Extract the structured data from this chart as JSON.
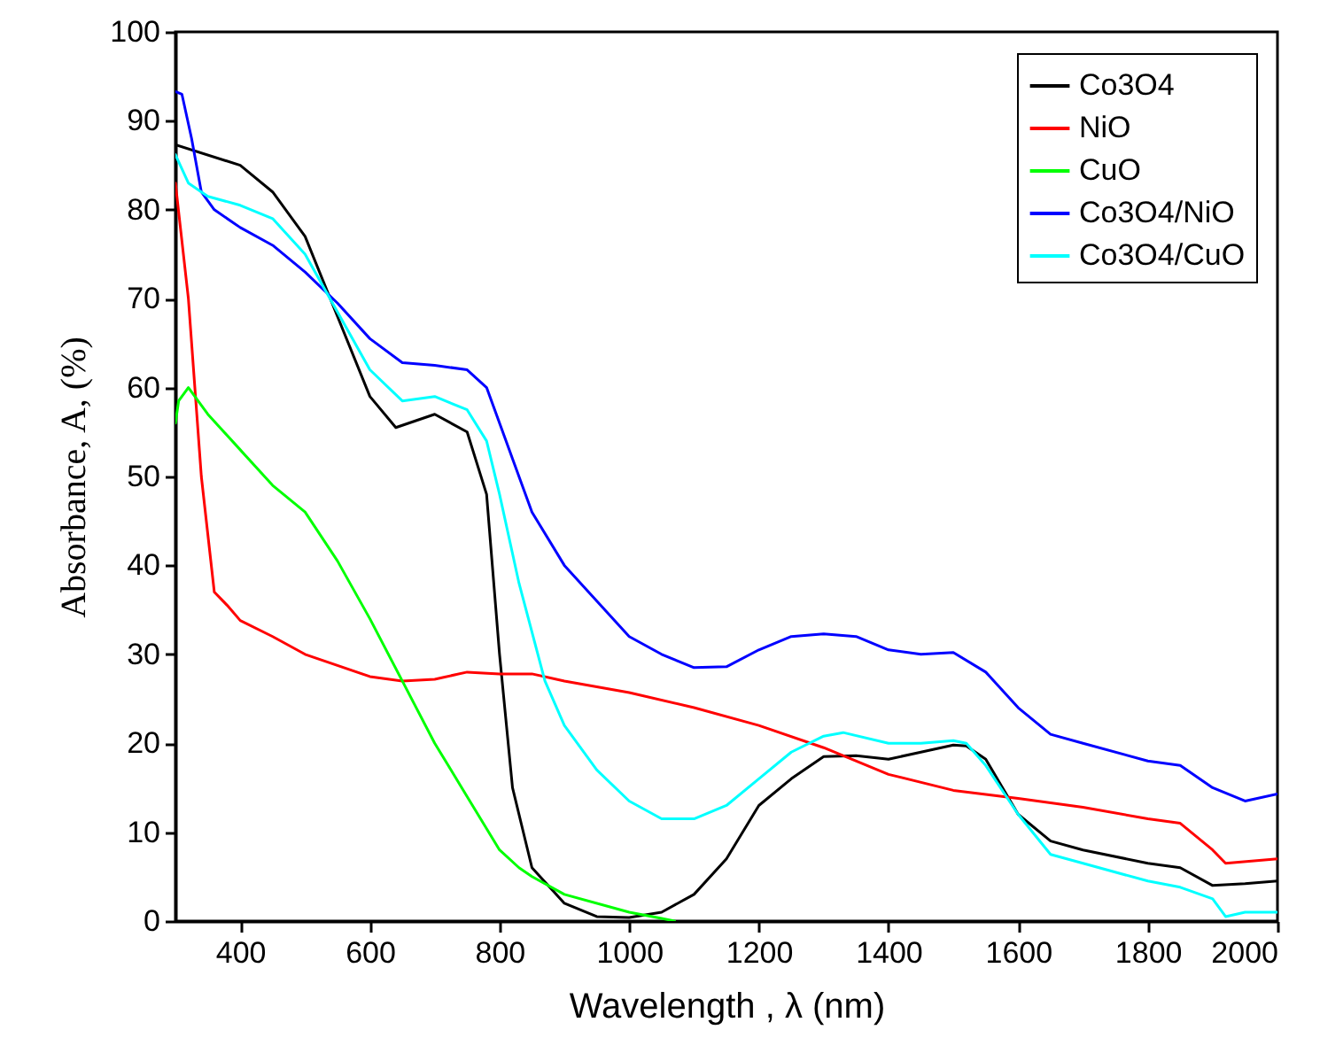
{
  "chart_data": {
    "type": "line",
    "xlabel": "Wavelength  , λ    (nm)",
    "ylabel": "Absorbance, A,   (%)",
    "xlim": [
      300,
      2000
    ],
    "xticks": [
      400,
      600,
      800,
      1000,
      1200,
      1400,
      1600,
      1800,
      2000
    ],
    "ylim": [
      0,
      100
    ],
    "yticks": [
      0,
      10,
      20,
      30,
      40,
      50,
      60,
      70,
      80,
      90,
      100
    ],
    "grid": false,
    "legend": "top right",
    "series": [
      {
        "name": "Co3O4",
        "color": "#000000",
        "x": [
          300,
          400,
          450,
          500,
          550,
          600,
          640,
          700,
          750,
          780,
          800,
          820,
          850,
          900,
          950,
          1000,
          1050,
          1100,
          1150,
          1200,
          1250,
          1300,
          1350,
          1400,
          1450,
          1500,
          1520,
          1550,
          1600,
          1650,
          1700,
          1800,
          1850,
          1900,
          1950,
          2000
        ],
        "values": [
          87.3,
          85,
          82,
          77,
          68,
          59,
          55.5,
          57,
          55,
          48,
          30,
          15,
          6,
          2,
          0.5,
          0.4,
          1,
          3,
          7,
          13,
          16,
          18.5,
          18.6,
          18.2,
          19,
          19.8,
          19.7,
          18.2,
          12,
          9,
          8,
          6.5,
          6,
          4,
          4.2,
          4.5
        ]
      },
      {
        "name": "NiO",
        "color": "#ff0000",
        "x": [
          300,
          320,
          340,
          360,
          380,
          400,
          450,
          500,
          600,
          650,
          700,
          750,
          800,
          850,
          900,
          1000,
          1100,
          1200,
          1300,
          1400,
          1500,
          1600,
          1700,
          1800,
          1850,
          1900,
          1920,
          2000
        ],
        "values": [
          83,
          70,
          50,
          37,
          35.5,
          33.8,
          32,
          30,
          27.5,
          27,
          27.2,
          28,
          27.8,
          27.8,
          27,
          25.7,
          24,
          22,
          19.5,
          16.5,
          14.7,
          13.8,
          12.8,
          11.5,
          11,
          8,
          6.5,
          7
        ]
      },
      {
        "name": "CuO",
        "color": "#00ff00",
        "x": [
          300,
          305,
          320,
          350,
          400,
          450,
          500,
          550,
          600,
          650,
          700,
          750,
          800,
          830,
          850,
          900,
          1000,
          1050,
          1070
        ],
        "values": [
          56,
          58.5,
          60,
          57,
          53,
          49,
          46,
          40.5,
          34,
          27,
          20,
          14,
          8,
          6,
          5,
          3,
          1,
          0.3,
          0
        ]
      },
      {
        "name": "Co3O4/NiO",
        "color": "#0000ff",
        "x": [
          300,
          310,
          325,
          340,
          360,
          400,
          450,
          500,
          550,
          600,
          650,
          700,
          750,
          780,
          820,
          850,
          900,
          1000,
          1050,
          1100,
          1150,
          1200,
          1250,
          1300,
          1350,
          1400,
          1450,
          1500,
          1550,
          1600,
          1650,
          1700,
          1800,
          1850,
          1900,
          1950,
          2000
        ],
        "values": [
          93.3,
          93,
          88,
          82,
          80,
          78,
          76,
          73,
          69.5,
          65.5,
          62.8,
          62.5,
          62,
          60,
          52,
          46,
          40,
          32,
          30,
          28.5,
          28.6,
          30.5,
          32,
          32.3,
          32,
          30.5,
          30,
          30.2,
          28,
          24,
          21,
          20,
          18,
          17.5,
          15,
          13.5,
          14.3
        ]
      },
      {
        "name": "Co3O4/CuO",
        "color": "#00ffff",
        "x": [
          300,
          320,
          350,
          400,
          450,
          500,
          550,
          600,
          650,
          700,
          750,
          780,
          800,
          830,
          870,
          900,
          950,
          1000,
          1050,
          1100,
          1150,
          1200,
          1250,
          1300,
          1330,
          1400,
          1450,
          1500,
          1520,
          1550,
          1600,
          1650,
          1700,
          1800,
          1850,
          1900,
          1920,
          1950,
          2000
        ],
        "values": [
          86.2,
          83,
          81.5,
          80.5,
          79,
          75,
          68.5,
          62,
          58.5,
          59,
          57.5,
          54,
          48,
          38,
          27,
          22,
          17,
          13.5,
          11.5,
          11.5,
          13,
          16,
          19,
          20.8,
          21.2,
          20,
          20,
          20.3,
          20,
          17.5,
          12,
          7.5,
          6.5,
          4.5,
          3.8,
          2.5,
          0.5,
          1,
          1
        ]
      }
    ]
  }
}
